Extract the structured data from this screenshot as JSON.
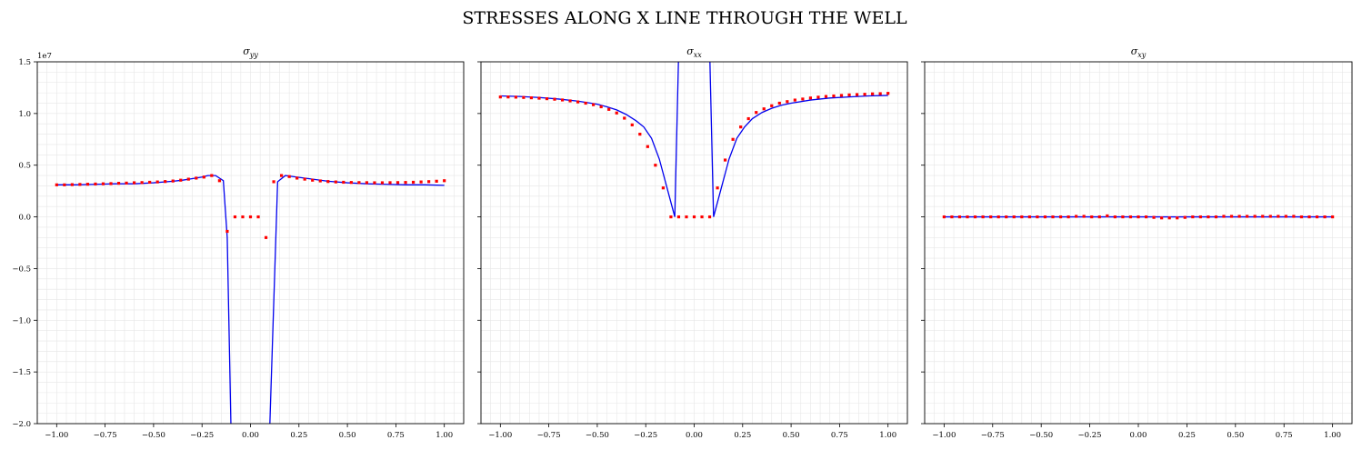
{
  "figure": {
    "suptitle": "STRESSES ALONG X LINE THROUGH THE WELL",
    "y_offset_label": "1e7"
  },
  "colors": {
    "analytic": "#0000ee",
    "numeric": "#ff0000",
    "grid": "#e6e6e6",
    "axes": "#000000"
  },
  "chart_data": [
    {
      "type": "line",
      "title": "σyy",
      "title_base": "σ",
      "title_sub": "yy",
      "xlabel": "",
      "ylabel": "",
      "xlim": [
        -1.1,
        1.1
      ],
      "ylim": [
        -2.0,
        1.5
      ],
      "y_scale_factor": "1e7",
      "grid": true,
      "x_ticks": [
        -1.0,
        -0.75,
        -0.5,
        -0.25,
        0.0,
        0.25,
        0.5,
        0.75,
        1.0
      ],
      "x_tick_labels": [
        "−1.00",
        "−0.75",
        "−0.50",
        "−0.25",
        "0.00",
        "0.25",
        "0.50",
        "0.75",
        "1.00"
      ],
      "y_ticks": [
        -2.0,
        -1.5,
        -1.0,
        -0.5,
        0.0,
        0.5,
        1.0,
        1.5
      ],
      "y_tick_labels": [
        "−2.0",
        "−1.5",
        "−1.0",
        "−0.5",
        "0.0",
        "0.5",
        "1.0",
        "1.5"
      ],
      "series": [
        {
          "style": "line",
          "x": [
            -1.0,
            -0.9,
            -0.8,
            -0.7,
            -0.6,
            -0.5,
            -0.4,
            -0.35,
            -0.3,
            -0.25,
            -0.22,
            -0.18,
            -0.14,
            -0.12,
            -0.1,
            -0.08,
            0.08,
            0.1,
            0.14,
            0.18,
            0.22,
            0.3,
            0.4,
            0.5,
            0.6,
            0.7,
            0.8,
            0.9,
            1.0
          ],
          "y": [
            0.31,
            0.31,
            0.315,
            0.32,
            0.32,
            0.33,
            0.345,
            0.355,
            0.37,
            0.385,
            0.4,
            0.4,
            0.35,
            -0.2,
            -2.1,
            -2.1,
            -2.1,
            -2.0,
            0.34,
            0.4,
            0.39,
            0.37,
            0.345,
            0.33,
            0.32,
            0.315,
            0.31,
            0.31,
            0.305
          ]
        },
        {
          "style": "markers",
          "x": [
            -1.0,
            -0.96,
            -0.92,
            -0.88,
            -0.84,
            -0.8,
            -0.76,
            -0.72,
            -0.68,
            -0.64,
            -0.6,
            -0.56,
            -0.52,
            -0.48,
            -0.44,
            -0.4,
            -0.36,
            -0.32,
            -0.28,
            -0.24,
            -0.2,
            -0.16,
            -0.12,
            -0.08,
            -0.04,
            0.0,
            0.04,
            0.08,
            0.12,
            0.16,
            0.2,
            0.24,
            0.28,
            0.32,
            0.36,
            0.4,
            0.44,
            0.48,
            0.52,
            0.56,
            0.6,
            0.64,
            0.68,
            0.72,
            0.76,
            0.8,
            0.84,
            0.88,
            0.92,
            0.96,
            1.0
          ],
          "y": [
            0.31,
            0.31,
            0.312,
            0.314,
            0.316,
            0.318,
            0.32,
            0.322,
            0.325,
            0.327,
            0.33,
            0.332,
            0.335,
            0.338,
            0.342,
            0.347,
            0.355,
            0.365,
            0.375,
            0.385,
            0.4,
            0.35,
            -0.14,
            0.0,
            0.0,
            0.0,
            0.0,
            -0.2,
            0.34,
            0.4,
            0.39,
            0.375,
            0.365,
            0.355,
            0.348,
            0.342,
            0.338,
            0.335,
            0.333,
            0.332,
            0.331,
            0.33,
            0.33,
            0.331,
            0.332,
            0.333,
            0.335,
            0.338,
            0.341,
            0.345,
            0.35
          ]
        }
      ]
    },
    {
      "type": "line",
      "title": "σxx",
      "title_base": "σ",
      "title_sub": "xx",
      "xlabel": "",
      "ylabel": "",
      "xlim": [
        -1.1,
        1.1
      ],
      "ylim": [
        -2.0,
        1.5
      ],
      "y_scale_factor": "1e7",
      "grid": true,
      "x_ticks": [
        -1.0,
        -0.75,
        -0.5,
        -0.25,
        0.0,
        0.25,
        0.5,
        0.75,
        1.0
      ],
      "x_tick_labels": [
        "−1.00",
        "−0.75",
        "−0.50",
        "−0.25",
        "0.00",
        "0.25",
        "0.50",
        "0.75",
        "1.00"
      ],
      "series": [
        {
          "style": "line",
          "x": [
            -1.0,
            -0.9,
            -0.8,
            -0.7,
            -0.6,
            -0.5,
            -0.45,
            -0.4,
            -0.35,
            -0.3,
            -0.26,
            -0.22,
            -0.18,
            -0.14,
            -0.1,
            -0.08,
            0.08,
            0.1,
            0.14,
            0.18,
            0.22,
            0.26,
            0.3,
            0.35,
            0.4,
            0.45,
            0.5,
            0.6,
            0.7,
            0.8,
            0.9,
            1.0
          ],
          "y": [
            1.17,
            1.165,
            1.155,
            1.14,
            1.12,
            1.09,
            1.065,
            1.035,
            0.99,
            0.93,
            0.87,
            0.76,
            0.56,
            0.28,
            0.0,
            1.6,
            1.6,
            0.0,
            0.28,
            0.56,
            0.76,
            0.87,
            0.95,
            1.01,
            1.05,
            1.08,
            1.1,
            1.13,
            1.15,
            1.16,
            1.17,
            1.175
          ]
        },
        {
          "style": "markers",
          "x": [
            -1.0,
            -0.96,
            -0.92,
            -0.88,
            -0.84,
            -0.8,
            -0.76,
            -0.72,
            -0.68,
            -0.64,
            -0.6,
            -0.56,
            -0.52,
            -0.48,
            -0.44,
            -0.4,
            -0.36,
            -0.32,
            -0.28,
            -0.24,
            -0.2,
            -0.16,
            -0.12,
            -0.08,
            -0.04,
            0.0,
            0.04,
            0.08,
            0.12,
            0.16,
            0.2,
            0.24,
            0.28,
            0.32,
            0.36,
            0.4,
            0.44,
            0.48,
            0.52,
            0.56,
            0.6,
            0.64,
            0.68,
            0.72,
            0.76,
            0.8,
            0.84,
            0.88,
            0.92,
            0.96,
            1.0
          ],
          "y": [
            1.16,
            1.16,
            1.158,
            1.155,
            1.152,
            1.148,
            1.143,
            1.138,
            1.131,
            1.122,
            1.112,
            1.1,
            1.085,
            1.065,
            1.04,
            1.005,
            0.955,
            0.89,
            0.8,
            0.68,
            0.5,
            0.28,
            0.0,
            0.0,
            0.0,
            0.0,
            0.0,
            0.0,
            0.28,
            0.55,
            0.75,
            0.87,
            0.95,
            1.01,
            1.045,
            1.075,
            1.1,
            1.115,
            1.13,
            1.14,
            1.15,
            1.158,
            1.165,
            1.17,
            1.175,
            1.18,
            1.183,
            1.186,
            1.19,
            1.192,
            1.195
          ]
        }
      ]
    },
    {
      "type": "line",
      "title": "σxy",
      "title_base": "σ",
      "title_sub": "xy",
      "xlabel": "",
      "ylabel": "",
      "xlim": [
        -1.1,
        1.1
      ],
      "ylim": [
        -2.0,
        1.5
      ],
      "y_scale_factor": "1e7",
      "grid": true,
      "x_ticks": [
        -1.0,
        -0.75,
        -0.5,
        -0.25,
        0.0,
        0.25,
        0.5,
        0.75,
        1.0
      ],
      "x_tick_labels": [
        "−1.00",
        "−0.75",
        "−0.50",
        "−0.25",
        "0.00",
        "0.25",
        "0.50",
        "0.75",
        "1.00"
      ],
      "series": [
        {
          "style": "line",
          "x": [
            -1.0,
            -0.5,
            0.0,
            0.5,
            1.0
          ],
          "y": [
            0.0,
            0.0,
            0.0,
            0.0,
            0.0
          ]
        },
        {
          "style": "markers",
          "x": [
            -1.0,
            -0.96,
            -0.92,
            -0.88,
            -0.84,
            -0.8,
            -0.76,
            -0.72,
            -0.68,
            -0.64,
            -0.6,
            -0.56,
            -0.52,
            -0.48,
            -0.44,
            -0.4,
            -0.36,
            -0.32,
            -0.28,
            -0.24,
            -0.2,
            -0.16,
            -0.12,
            -0.08,
            -0.04,
            0.0,
            0.04,
            0.08,
            0.12,
            0.16,
            0.2,
            0.24,
            0.28,
            0.32,
            0.36,
            0.4,
            0.44,
            0.48,
            0.52,
            0.56,
            0.6,
            0.64,
            0.68,
            0.72,
            0.76,
            0.8,
            0.84,
            0.88,
            0.92,
            0.96,
            1.0
          ],
          "y": [
            0.0,
            0.0,
            0.0,
            0.0,
            0.0,
            0.0,
            0.0,
            0.0,
            0.0,
            0.0,
            0.0,
            0.0,
            0.0,
            0.0,
            0.0,
            0.0,
            0.0,
            0.005,
            0.005,
            0.0,
            0.0,
            0.01,
            0.0,
            0.0,
            0.0,
            0.0,
            0.0,
            -0.005,
            -0.01,
            -0.01,
            -0.01,
            -0.005,
            0.0,
            0.0,
            0.0,
            0.0,
            0.005,
            0.005,
            0.005,
            0.005,
            0.005,
            0.005,
            0.005,
            0.005,
            0.005,
            0.005,
            0.0,
            0.0,
            0.0,
            0.0,
            0.0
          ]
        }
      ]
    }
  ]
}
